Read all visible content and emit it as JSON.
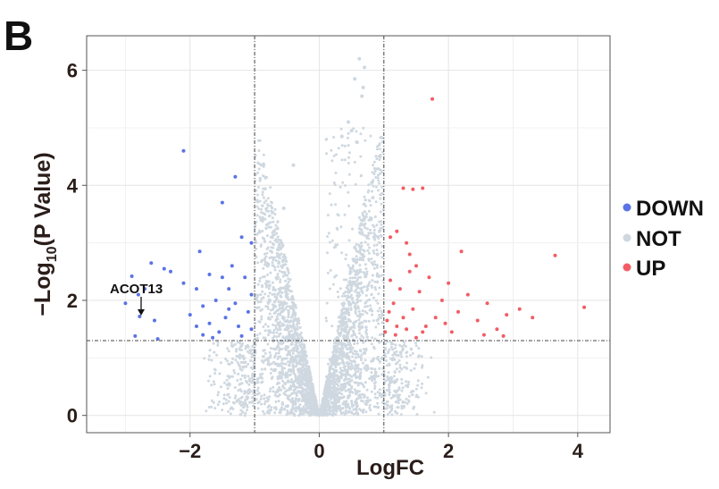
{
  "panel_label": "B",
  "chart_data": {
    "type": "scatter",
    "title": "",
    "xlabel": "LogFC",
    "ylabel_main": "−Log",
    "ylabel_sub": "10",
    "ylabel_rest": "(P Value)",
    "xlim": [
      -3.6,
      4.5
    ],
    "ylim": [
      -0.3,
      6.6
    ],
    "xticks": [
      -2,
      0,
      2,
      4
    ],
    "xtick_labels": [
      "−2",
      "0",
      "2",
      "4"
    ],
    "yticks": [
      0,
      2,
      4,
      6
    ],
    "ytick_labels": [
      "0",
      "2",
      "4",
      "6"
    ],
    "grid": true,
    "thresholds": {
      "logfc_low": -1,
      "logfc_high": 1,
      "neglog10p": 1.3
    },
    "legend": {
      "position": "right",
      "entries": [
        {
          "label": "DOWN",
          "color": "#5b73e6"
        },
        {
          "label": "NOT",
          "color": "#cfd8e0"
        },
        {
          "label": "UP",
          "color": "#f25c65"
        }
      ]
    },
    "annotation": {
      "text": "ACOT13",
      "x": -2.78,
      "y": 1.72
    },
    "series": [
      {
        "name": "NOT",
        "color": "#cfd8e0",
        "points": [
          [
            0.62,
            6.2
          ],
          [
            0.7,
            6.05
          ],
          [
            0.55,
            5.85
          ],
          [
            0.68,
            5.7
          ],
          [
            0.66,
            5.55
          ],
          [
            0.45,
            5.1
          ],
          [
            0.5,
            4.95
          ],
          [
            0.35,
            4.85
          ],
          [
            -0.4,
            4.35
          ],
          [
            0.58,
            4.75
          ],
          [
            -0.55,
            3.6
          ],
          [
            -0.7,
            3.2
          ],
          [
            -0.9,
            3.4
          ],
          [
            0.85,
            3.1
          ],
          [
            0.9,
            2.8
          ],
          [
            -0.8,
            2.6
          ]
        ]
      },
      {
        "name": "DOWN",
        "color": "#5b73e6",
        "points": [
          [
            -2.1,
            4.6
          ],
          [
            -1.3,
            4.15
          ],
          [
            -1.5,
            3.7
          ],
          [
            -1.2,
            3.1
          ],
          [
            -1.05,
            3.0
          ],
          [
            -1.85,
            2.85
          ],
          [
            -2.4,
            2.55
          ],
          [
            -2.6,
            2.65
          ],
          [
            -2.3,
            2.5
          ],
          [
            -2.9,
            2.42
          ],
          [
            -2.7,
            2.2
          ],
          [
            -3.0,
            1.95
          ],
          [
            -2.8,
            2.1
          ],
          [
            -2.78,
            1.72
          ],
          [
            -2.55,
            1.65
          ],
          [
            -2.1,
            2.3
          ],
          [
            -1.9,
            2.2
          ],
          [
            -1.7,
            2.45
          ],
          [
            -1.5,
            2.4
          ],
          [
            -1.35,
            2.6
          ],
          [
            -1.15,
            2.4
          ],
          [
            -1.4,
            2.2
          ],
          [
            -1.6,
            2.0
          ],
          [
            -1.8,
            1.9
          ],
          [
            -2.0,
            1.75
          ],
          [
            -1.3,
            1.95
          ],
          [
            -1.1,
            1.8
          ],
          [
            -1.45,
            1.7
          ],
          [
            -1.7,
            1.6
          ],
          [
            -1.9,
            1.55
          ],
          [
            -1.25,
            1.55
          ],
          [
            -1.55,
            1.45
          ],
          [
            -1.05,
            1.5
          ],
          [
            -1.2,
            1.38
          ],
          [
            -1.65,
            1.35
          ],
          [
            -1.8,
            1.4
          ],
          [
            -2.85,
            1.38
          ],
          [
            -2.5,
            1.33
          ],
          [
            -1.4,
            1.85
          ],
          [
            -1.05,
            2.1
          ]
        ]
      },
      {
        "name": "UP",
        "color": "#f25c65",
        "points": [
          [
            1.75,
            5.5
          ],
          [
            1.3,
            3.95
          ],
          [
            1.45,
            3.93
          ],
          [
            1.6,
            3.95
          ],
          [
            1.2,
            3.2
          ],
          [
            1.1,
            3.1
          ],
          [
            1.35,
            3.0
          ],
          [
            1.4,
            2.8
          ],
          [
            1.5,
            2.6
          ],
          [
            2.2,
            2.85
          ],
          [
            3.65,
            2.78
          ],
          [
            4.1,
            1.88
          ],
          [
            3.3,
            1.7
          ],
          [
            3.1,
            1.85
          ],
          [
            2.9,
            1.75
          ],
          [
            2.75,
            1.5
          ],
          [
            2.6,
            1.95
          ],
          [
            2.45,
            1.65
          ],
          [
            2.3,
            2.1
          ],
          [
            2.15,
            1.8
          ],
          [
            2.0,
            2.3
          ],
          [
            1.9,
            2.0
          ],
          [
            1.8,
            1.7
          ],
          [
            1.7,
            2.4
          ],
          [
            1.65,
            1.55
          ],
          [
            1.55,
            2.15
          ],
          [
            1.45,
            1.85
          ],
          [
            1.4,
            2.5
          ],
          [
            1.3,
            1.7
          ],
          [
            1.25,
            2.2
          ],
          [
            1.2,
            1.55
          ],
          [
            1.15,
            1.95
          ],
          [
            1.1,
            2.35
          ],
          [
            1.05,
            1.65
          ],
          [
            1.02,
            1.45
          ],
          [
            1.08,
            1.8
          ],
          [
            1.18,
            1.4
          ],
          [
            1.35,
            1.5
          ],
          [
            1.6,
            1.45
          ],
          [
            2.05,
            1.45
          ],
          [
            2.55,
            1.4
          ],
          [
            2.85,
            1.38
          ],
          [
            1.95,
            1.6
          ],
          [
            1.5,
            1.35
          ]
        ]
      }
    ]
  }
}
